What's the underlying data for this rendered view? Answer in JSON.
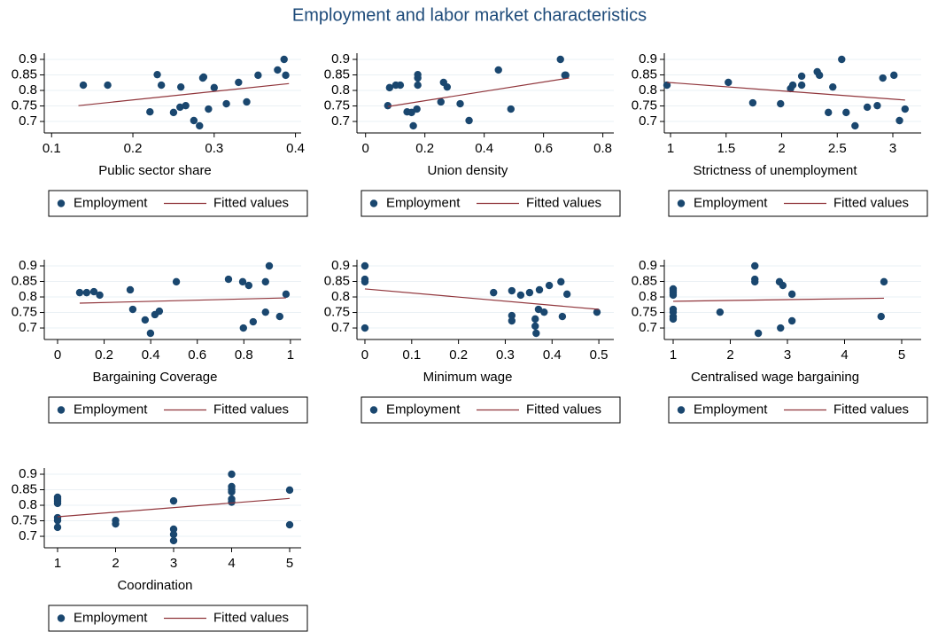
{
  "title": "Employment and labor market characteristics",
  "chart_data": [
    {
      "type": "scatter",
      "x_label": "Public sector share",
      "xlim": [
        0.091,
        0.407
      ],
      "xticks": [
        0.1,
        0.2,
        0.3,
        0.4
      ],
      "ylim": [
        0.663,
        0.92
      ],
      "yticks": [
        0.7,
        0.75,
        0.8,
        0.85,
        0.9
      ],
      "grid": true,
      "series": [
        {
          "name": "Employment",
          "color": "#1a476f",
          "x": [
            0.139,
            0.169,
            0.221,
            0.23,
            0.235,
            0.25,
            0.258,
            0.259,
            0.265,
            0.275,
            0.282,
            0.286,
            0.287,
            0.293,
            0.3,
            0.315,
            0.33,
            0.34,
            0.354,
            0.378,
            0.386,
            0.388
          ],
          "values": [
            0.817,
            0.817,
            0.731,
            0.851,
            0.817,
            0.729,
            0.746,
            0.811,
            0.751,
            0.703,
            0.686,
            0.84,
            0.843,
            0.74,
            0.809,
            0.757,
            0.826,
            0.763,
            0.849,
            0.866,
            0.9,
            0.849
          ]
        },
        {
          "name": "Fitted values",
          "type": "line",
          "color": "#90353b",
          "x": [
            0.133,
            0.392
          ],
          "values": [
            0.751,
            0.822
          ]
        }
      ]
    },
    {
      "type": "scatter",
      "x_label": "Union density",
      "xlim": [
        -0.029,
        0.837
      ],
      "xticks": [
        0,
        0.2,
        0.4,
        0.6,
        0.8
      ],
      "ylim": [
        0.663,
        0.92
      ],
      "yticks": [
        0.7,
        0.75,
        0.8,
        0.85,
        0.9
      ],
      "grid": true,
      "series": [
        {
          "name": "Employment",
          "color": "#1a476f",
          "x": [
            0.075,
            0.081,
            0.102,
            0.117,
            0.14,
            0.155,
            0.161,
            0.173,
            0.176,
            0.176,
            0.176,
            0.254,
            0.263,
            0.275,
            0.319,
            0.349,
            0.448,
            0.49,
            0.657,
            0.672,
            0.675
          ],
          "values": [
            0.751,
            0.809,
            0.817,
            0.817,
            0.731,
            0.729,
            0.686,
            0.74,
            0.851,
            0.817,
            0.84,
            0.763,
            0.826,
            0.811,
            0.757,
            0.703,
            0.866,
            0.74,
            0.9,
            0.849,
            0.849
          ]
        },
        {
          "name": "Fitted values",
          "type": "line",
          "color": "#90353b",
          "x": [
            0.075,
            0.686
          ],
          "values": [
            0.748,
            0.84
          ]
        }
      ]
    },
    {
      "type": "scatter",
      "x_label": "Strictness of unemployment",
      "xlim": [
        0.944,
        3.255
      ],
      "xticks": [
        1,
        1.5,
        2,
        2.5,
        3
      ],
      "ylim": [
        0.663,
        0.92
      ],
      "yticks": [
        0.7,
        0.75,
        0.8,
        0.85,
        0.9
      ],
      "grid": true,
      "series": [
        {
          "name": "Employment",
          "color": "#1a476f",
          "x": [
            0.968,
            1.52,
            1.74,
            1.99,
            2.08,
            2.1,
            2.18,
            2.18,
            2.32,
            2.34,
            2.42,
            2.46,
            2.54,
            2.58,
            2.66,
            2.77,
            2.86,
            2.91,
            3.01,
            3.06,
            3.11
          ],
          "values": [
            0.817,
            0.826,
            0.76,
            0.757,
            0.806,
            0.817,
            0.817,
            0.846,
            0.86,
            0.849,
            0.729,
            0.811,
            0.9,
            0.729,
            0.686,
            0.746,
            0.751,
            0.84,
            0.849,
            0.703,
            0.74
          ]
        },
        {
          "name": "Fitted values",
          "type": "line",
          "color": "#90353b",
          "x": [
            0.968,
            3.11
          ],
          "values": [
            0.826,
            0.769
          ]
        }
      ]
    },
    {
      "type": "scatter",
      "x_label": "Bargaining Coverage",
      "xlim": [
        -0.057,
        1.046
      ],
      "xticks": [
        0,
        0.2,
        0.4,
        0.6,
        0.8,
        1
      ],
      "ylim": [
        0.663,
        0.92
      ],
      "yticks": [
        0.7,
        0.75,
        0.8,
        0.85,
        0.9
      ],
      "grid": true,
      "series": [
        {
          "name": "Employment",
          "color": "#1a476f",
          "x": [
            0.095,
            0.125,
            0.156,
            0.181,
            0.312,
            0.323,
            0.376,
            0.399,
            0.418,
            0.437,
            0.51,
            0.734,
            0.795,
            0.798,
            0.821,
            0.84,
            0.893,
            0.893,
            0.909,
            0.954,
            0.981
          ],
          "values": [
            0.814,
            0.814,
            0.817,
            0.806,
            0.823,
            0.76,
            0.726,
            0.683,
            0.743,
            0.754,
            0.849,
            0.857,
            0.849,
            0.7,
            0.837,
            0.72,
            0.751,
            0.849,
            0.9,
            0.737,
            0.809
          ]
        },
        {
          "name": "Fitted values",
          "type": "line",
          "color": "#90353b",
          "x": [
            0.095,
            0.981
          ],
          "values": [
            0.78,
            0.797
          ]
        }
      ]
    },
    {
      "type": "scatter",
      "x_label": "Minimum wage",
      "xlim": [
        -0.017,
        0.532
      ],
      "xticks": [
        0,
        0.1,
        0.2,
        0.3,
        0.4,
        0.5
      ],
      "ylim": [
        0.663,
        0.92
      ],
      "yticks": [
        0.7,
        0.75,
        0.8,
        0.85,
        0.9
      ],
      "grid": true,
      "series": [
        {
          "name": "Employment",
          "color": "#1a476f",
          "x": [
            0,
            0,
            0,
            0,
            0.275,
            0.314,
            0.314,
            0.314,
            0.333,
            0.352,
            0.364,
            0.366,
            0.364,
            0.371,
            0.373,
            0.383,
            0.394,
            0.419,
            0.422,
            0.432,
            0.496
          ],
          "values": [
            0.9,
            0.857,
            0.849,
            0.7,
            0.814,
            0.82,
            0.74,
            0.723,
            0.806,
            0.814,
            0.706,
            0.683,
            0.729,
            0.76,
            0.823,
            0.751,
            0.837,
            0.849,
            0.737,
            0.809,
            0.751
          ]
        },
        {
          "name": "Fitted values",
          "type": "line",
          "color": "#90353b",
          "x": [
            0,
            0.5
          ],
          "values": [
            0.826,
            0.76
          ]
        }
      ]
    },
    {
      "type": "scatter",
      "x_label": "Centralised wage bargaining",
      "xlim": [
        0.845,
        5.341
      ],
      "xticks": [
        1,
        2,
        3,
        4,
        5
      ],
      "ylim": [
        0.663,
        0.92
      ],
      "yticks": [
        0.7,
        0.75,
        0.8,
        0.85,
        0.9
      ],
      "grid": true,
      "series": [
        {
          "name": "Employment",
          "color": "#1a476f",
          "x": [
            1,
            1,
            1,
            1,
            1,
            1,
            1,
            1,
            1.82,
            2.43,
            2.43,
            2.43,
            2.49,
            2.86,
            2.88,
            2.92,
            3.08,
            3.08,
            4.64,
            4.69
          ],
          "values": [
            0.826,
            0.82,
            0.814,
            0.806,
            0.76,
            0.751,
            0.737,
            0.729,
            0.751,
            0.9,
            0.857,
            0.849,
            0.683,
            0.849,
            0.7,
            0.837,
            0.809,
            0.723,
            0.737,
            0.849
          ]
        },
        {
          "name": "Fitted values",
          "type": "line",
          "color": "#90353b",
          "x": [
            1,
            4.69
          ],
          "values": [
            0.786,
            0.796
          ]
        }
      ]
    },
    {
      "type": "scatter",
      "x_label": "Coordination",
      "xlim": [
        0.771,
        5.198
      ],
      "xticks": [
        1,
        2,
        3,
        4,
        5
      ],
      "ylim": [
        0.663,
        0.92
      ],
      "yticks": [
        0.7,
        0.75,
        0.8,
        0.85,
        0.9
      ],
      "grid": true,
      "series": [
        {
          "name": "Employment",
          "color": "#1a476f",
          "x": [
            1,
            1,
            1,
            1,
            1,
            1,
            1,
            2,
            2,
            3,
            3,
            3,
            3,
            4,
            4,
            4,
            4,
            4,
            4,
            5,
            5
          ],
          "values": [
            0.826,
            0.82,
            0.814,
            0.806,
            0.76,
            0.751,
            0.729,
            0.751,
            0.74,
            0.814,
            0.723,
            0.706,
            0.686,
            0.9,
            0.86,
            0.85,
            0.843,
            0.82,
            0.81,
            0.849,
            0.737
          ]
        },
        {
          "name": "Fitted values",
          "type": "line",
          "color": "#90353b",
          "x": [
            1,
            5
          ],
          "values": [
            0.763,
            0.822
          ]
        }
      ]
    }
  ]
}
